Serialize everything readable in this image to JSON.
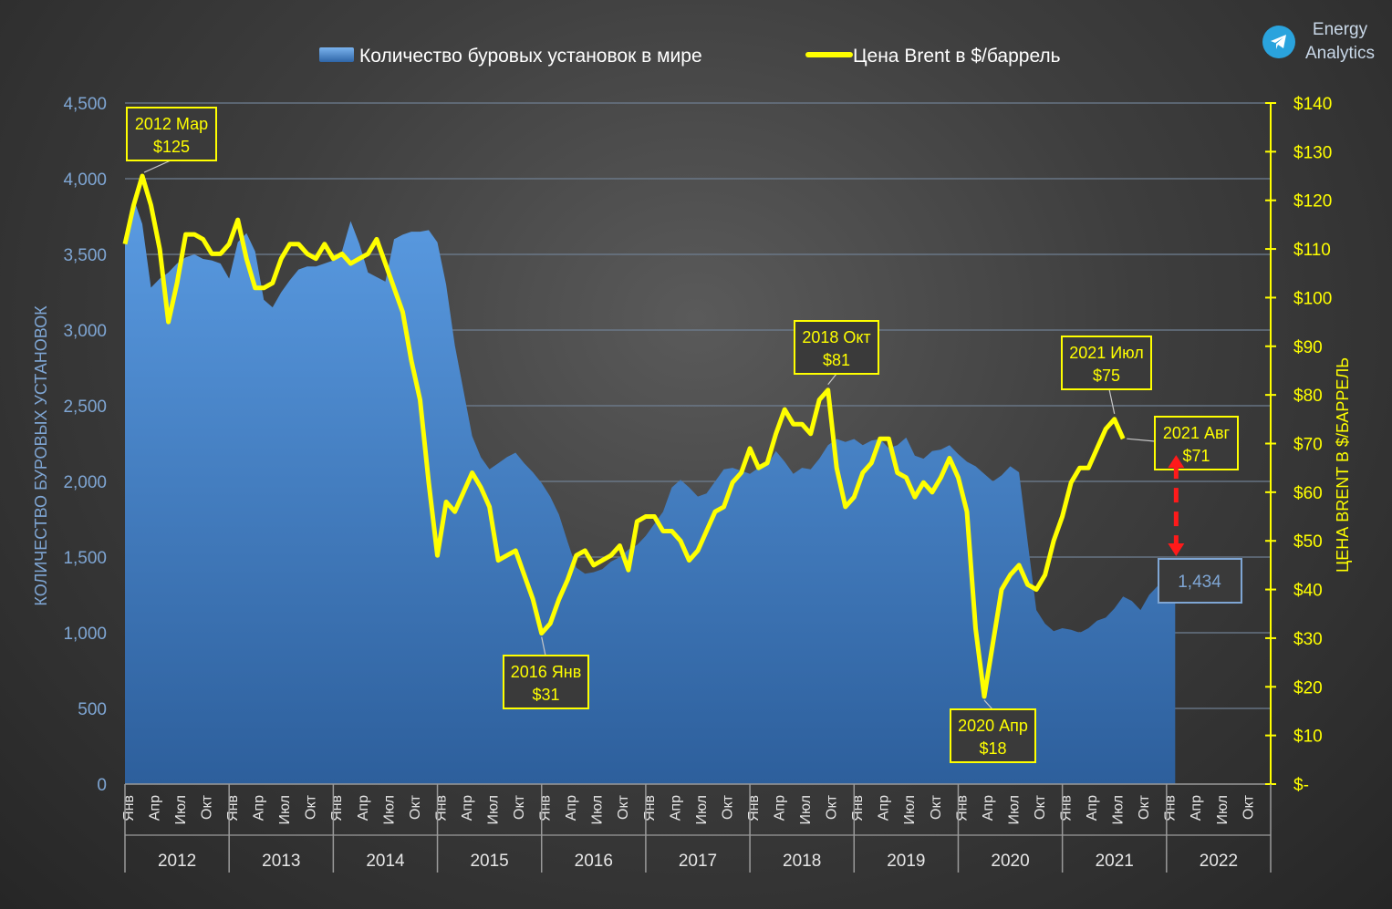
{
  "brand": {
    "line1": "Energy",
    "line2": "Analytics",
    "icon": "telegram-icon"
  },
  "chart_data": {
    "type": "area+line",
    "legend": {
      "rigs_label": "Количество буровых установок в мире",
      "brent_label": "Цена Brent в $/баррель"
    },
    "left_axis": {
      "title": "КОЛИЧЕСТВО   БУРОВЫХ   УСТАНОВОК",
      "range": [
        0,
        4500
      ],
      "ticks": [
        "0",
        "500",
        "1,000",
        "1,500",
        "2,000",
        "2,500",
        "3,000",
        "3,500",
        "4,000",
        "4,500"
      ]
    },
    "right_axis": {
      "title": "ЦЕНА   BRENT   В   $/БАРРЕЛЬ",
      "range": [
        0,
        140
      ],
      "ticks": [
        "$-",
        "$10",
        "$20",
        "$30",
        "$40",
        "$50",
        "$60",
        "$70",
        "$80",
        "$90",
        "$100",
        "$110",
        "$120",
        "$130",
        "$140"
      ]
    },
    "x_axis": {
      "months": [
        "Янв",
        "Апр",
        "Июл",
        "Окт"
      ],
      "years": [
        "2012",
        "2013",
        "2014",
        "2015",
        "2016",
        "2017",
        "2018",
        "2019",
        "2020",
        "2021",
        "2022"
      ]
    },
    "rig_count": [
      3560,
      3870,
      3700,
      3280,
      3340,
      3380,
      3440,
      3480,
      3500,
      3470,
      3460,
      3440,
      3340,
      3580,
      3640,
      3520,
      3200,
      3150,
      3250,
      3330,
      3400,
      3420,
      3420,
      3440,
      3460,
      3520,
      3720,
      3570,
      3380,
      3350,
      3320,
      3600,
      3630,
      3650,
      3650,
      3660,
      3580,
      3300,
      2900,
      2600,
      2300,
      2160,
      2080,
      2120,
      2160,
      2190,
      2120,
      2060,
      1990,
      1900,
      1780,
      1600,
      1430,
      1390,
      1400,
      1420,
      1470,
      1500,
      1550,
      1580,
      1640,
      1720,
      1800,
      1960,
      2010,
      1960,
      1900,
      1920,
      2000,
      2080,
      2090,
      2070,
      2050,
      2090,
      2110,
      2200,
      2130,
      2050,
      2090,
      2080,
      2150,
      2240,
      2280,
      2260,
      2280,
      2240,
      2270,
      2280,
      2220,
      2240,
      2290,
      2170,
      2150,
      2200,
      2210,
      2240,
      2180,
      2130,
      2100,
      2050,
      2000,
      2040,
      2100,
      2060,
      1600,
      1150,
      1060,
      1010,
      1030,
      1020,
      1000,
      1030,
      1080,
      1100,
      1160,
      1240,
      1210,
      1150,
      1250,
      1310,
      1380,
      1434
    ],
    "brent_price": [
      111,
      119,
      125,
      119,
      110,
      95,
      103,
      113,
      113,
      112,
      109,
      109,
      111,
      116,
      108,
      102,
      102,
      103,
      108,
      111,
      111,
      109,
      108,
      111,
      108,
      109,
      107,
      108,
      109,
      112,
      107,
      102,
      97,
      87,
      79,
      62,
      47,
      58,
      56,
      60,
      64,
      61,
      57,
      46,
      47,
      48,
      43,
      38,
      31,
      33,
      38,
      42,
      47,
      48,
      45,
      46,
      47,
      49,
      44,
      54,
      55,
      55,
      52,
      52,
      50,
      46,
      48,
      52,
      56,
      57,
      62,
      64,
      69,
      65,
      66,
      72,
      77,
      74,
      74,
      72,
      79,
      81,
      65,
      57,
      59,
      64,
      66,
      71,
      71,
      64,
      63,
      59,
      62,
      60,
      63,
      67,
      63,
      56,
      32,
      18,
      29,
      40,
      43,
      45,
      41,
      40,
      43,
      50,
      55,
      62,
      65,
      65,
      69,
      73,
      75,
      71
    ],
    "annotations": [
      {
        "period": "2012 Мар",
        "value": "$125"
      },
      {
        "period": "2016 Янв",
        "value": "$31"
      },
      {
        "period": "2018 Окт",
        "value": "$81"
      },
      {
        "period": "2020 Апр",
        "value": "$18"
      },
      {
        "period": "2021 Июл",
        "value": "$75"
      },
      {
        "period": "2021 Авг",
        "value": "$71"
      }
    ],
    "last_rig_count": "1,434"
  },
  "colors": {
    "area_top": "#5a9be2",
    "area_bottom": "#2c5c98",
    "line": "#ffff00",
    "left_axis_text": "#7fa6d4",
    "right_axis_text": "#ffff00",
    "arrow": "#ff1a1a"
  }
}
